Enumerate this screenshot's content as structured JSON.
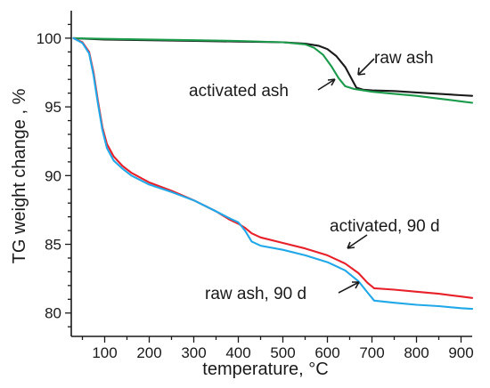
{
  "chart_data": {
    "type": "line",
    "xlabel": "temperature, °C",
    "ylabel": "TG weight change , %",
    "xlim": [
      25,
      925
    ],
    "ylim": [
      78.3,
      102
    ],
    "x_ticks": [
      100,
      200,
      300,
      400,
      500,
      600,
      700,
      800,
      900
    ],
    "y_ticks": [
      80,
      85,
      90,
      95,
      100
    ],
    "colors": {
      "raw_ash": "#1a1a1a",
      "activated_ash": "#1a9a4a",
      "activated_90d": "#e8202a",
      "raw_ash_90d": "#20a8e8"
    },
    "series": [
      {
        "name": "raw ash",
        "color": "#1a1a1a",
        "points": [
          [
            30,
            100
          ],
          [
            100,
            99.9
          ],
          [
            200,
            99.85
          ],
          [
            300,
            99.8
          ],
          [
            400,
            99.75
          ],
          [
            500,
            99.7
          ],
          [
            550,
            99.6
          ],
          [
            580,
            99.45
          ],
          [
            600,
            99.2
          ],
          [
            620,
            98.7
          ],
          [
            640,
            97.9
          ],
          [
            655,
            97.0
          ],
          [
            665,
            96.4
          ],
          [
            680,
            96.25
          ],
          [
            700,
            96.2
          ],
          [
            750,
            96.15
          ],
          [
            800,
            96.05
          ],
          [
            850,
            95.95
          ],
          [
            900,
            95.85
          ],
          [
            925,
            95.8
          ]
        ]
      },
      {
        "name": "activated ash",
        "color": "#1a9a4a",
        "points": [
          [
            30,
            100
          ],
          [
            100,
            99.95
          ],
          [
            200,
            99.9
          ],
          [
            300,
            99.85
          ],
          [
            400,
            99.8
          ],
          [
            500,
            99.7
          ],
          [
            550,
            99.55
          ],
          [
            570,
            99.3
          ],
          [
            590,
            98.8
          ],
          [
            610,
            97.9
          ],
          [
            625,
            97.1
          ],
          [
            640,
            96.5
          ],
          [
            660,
            96.3
          ],
          [
            700,
            96.1
          ],
          [
            750,
            95.95
          ],
          [
            800,
            95.8
          ],
          [
            850,
            95.6
          ],
          [
            900,
            95.4
          ],
          [
            925,
            95.3
          ]
        ]
      },
      {
        "name": "activated, 90 d",
        "color": "#e8202a",
        "points": [
          [
            30,
            100
          ],
          [
            50,
            99.7
          ],
          [
            65,
            99.0
          ],
          [
            75,
            97.5
          ],
          [
            85,
            95.4
          ],
          [
            95,
            93.5
          ],
          [
            105,
            92.3
          ],
          [
            120,
            91.4
          ],
          [
            140,
            90.7
          ],
          [
            160,
            90.2
          ],
          [
            200,
            89.5
          ],
          [
            250,
            88.9
          ],
          [
            300,
            88.2
          ],
          [
            350,
            87.4
          ],
          [
            380,
            86.8
          ],
          [
            400,
            86.5
          ],
          [
            415,
            86.2
          ],
          [
            430,
            85.8
          ],
          [
            450,
            85.5
          ],
          [
            500,
            85.1
          ],
          [
            550,
            84.7
          ],
          [
            600,
            84.2
          ],
          [
            640,
            83.6
          ],
          [
            670,
            82.9
          ],
          [
            690,
            82.2
          ],
          [
            705,
            81.8
          ],
          [
            750,
            81.7
          ],
          [
            800,
            81.55
          ],
          [
            850,
            81.4
          ],
          [
            900,
            81.2
          ],
          [
            925,
            81.1
          ]
        ]
      },
      {
        "name": "raw ash, 90 d",
        "color": "#20a8e8",
        "points": [
          [
            30,
            100
          ],
          [
            50,
            99.65
          ],
          [
            65,
            98.9
          ],
          [
            75,
            97.3
          ],
          [
            85,
            95.2
          ],
          [
            95,
            93.3
          ],
          [
            105,
            92.0
          ],
          [
            120,
            91.1
          ],
          [
            140,
            90.5
          ],
          [
            160,
            90.0
          ],
          [
            200,
            89.35
          ],
          [
            250,
            88.8
          ],
          [
            300,
            88.2
          ],
          [
            350,
            87.4
          ],
          [
            380,
            86.9
          ],
          [
            400,
            86.6
          ],
          [
            415,
            86.0
          ],
          [
            430,
            85.2
          ],
          [
            450,
            84.9
          ],
          [
            500,
            84.6
          ],
          [
            550,
            84.2
          ],
          [
            600,
            83.7
          ],
          [
            640,
            83.1
          ],
          [
            670,
            82.3
          ],
          [
            690,
            81.5
          ],
          [
            705,
            80.9
          ],
          [
            750,
            80.75
          ],
          [
            800,
            80.6
          ],
          [
            850,
            80.5
          ],
          [
            900,
            80.35
          ],
          [
            925,
            80.3
          ]
        ]
      }
    ],
    "annotations": [
      {
        "text": "raw ash",
        "target": [
          670,
          96.4
        ]
      },
      {
        "text": "activated ash",
        "target": [
          632,
          96.6
        ]
      },
      {
        "text": "activated, 90 d",
        "target": [
          660,
          83.3
        ]
      },
      {
        "text": "raw ash, 90 d",
        "target": [
          705,
          81.0
        ]
      }
    ]
  }
}
